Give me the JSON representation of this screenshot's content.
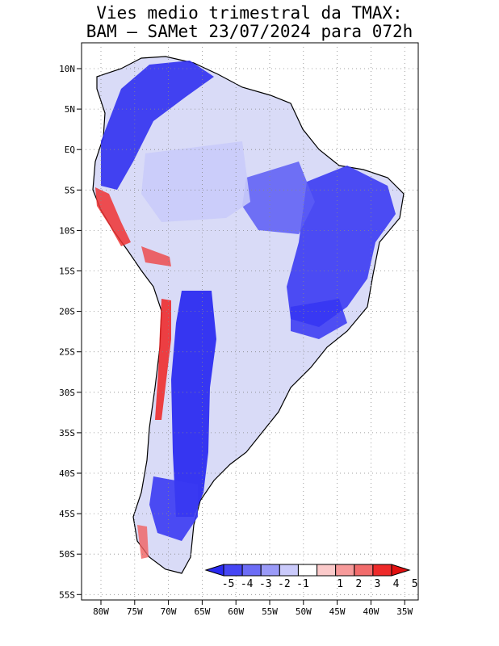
{
  "title": {
    "line1": "Vies medio trimestral da TMAX:",
    "line2": "BAM – SAMet 23/07/2024  para 072h"
  },
  "map": {
    "lat_ticks": [
      "10N",
      "5N",
      "EQ",
      "5S",
      "10S",
      "15S",
      "20S",
      "25S",
      "30S",
      "35S",
      "40S",
      "45S",
      "50S",
      "55S"
    ],
    "lon_ticks": [
      "80W",
      "75W",
      "70W",
      "65W",
      "60W",
      "55W",
      "50W",
      "45W",
      "40W",
      "35W"
    ],
    "grid": "dotted",
    "colors": {
      "land_bg": "#d9dbf7",
      "strong_blue": "#2323f0",
      "mid_blue": "#5a5cf5",
      "light_blue": "#9fa1f9",
      "near_zero": "#ffffff",
      "warm_1": "#ffd0d0",
      "warm_5": "#ee1111",
      "coast": "#000000"
    }
  },
  "colorbar": {
    "labels": [
      "-5",
      "-4",
      "-3",
      "-2",
      "-1",
      "1",
      "2",
      "3",
      "4",
      "5"
    ],
    "colors": [
      "#2a2af2",
      "#4646f4",
      "#6c6cf6",
      "#9a9af8",
      "#cacafb",
      "#ffffff",
      "#fbcaca",
      "#f79a9a",
      "#f26c6c",
      "#ee2a2a",
      "#e11010"
    ],
    "position": "bottom-right"
  }
}
